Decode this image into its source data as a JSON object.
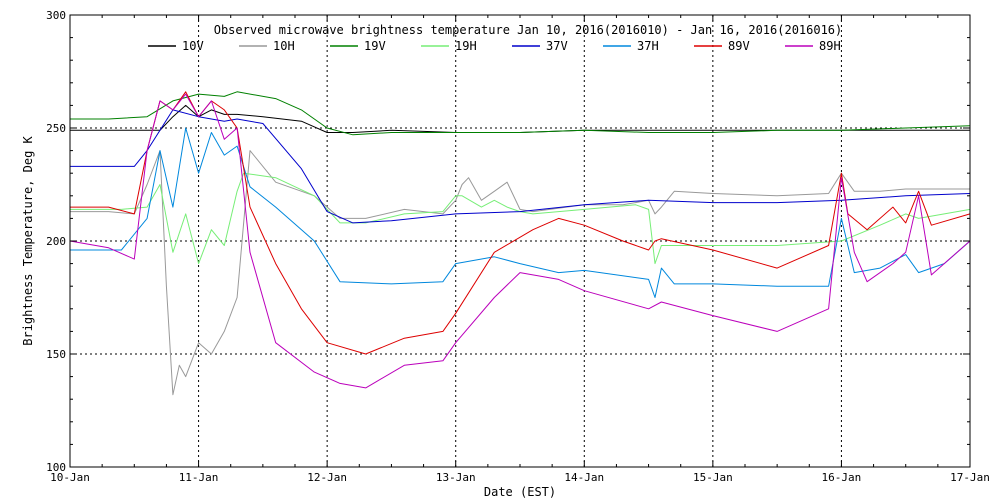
{
  "chart_data": {
    "type": "line",
    "title": "Observed microwave brightness temperature Jan 10, 2016(2016010) - Jan 16, 2016(2016016)",
    "xlabel": "Date (EST)",
    "ylabel": "Brightness Temperature, Deg K",
    "xlim": [
      0,
      7
    ],
    "ylim": [
      100,
      300
    ],
    "x_ticks": [
      {
        "x": 0,
        "label": "10-Jan"
      },
      {
        "x": 1,
        "label": "11-Jan"
      },
      {
        "x": 2,
        "label": "12-Jan"
      },
      {
        "x": 3,
        "label": "13-Jan"
      },
      {
        "x": 4,
        "label": "14-Jan"
      },
      {
        "x": 5,
        "label": "15-Jan"
      },
      {
        "x": 6,
        "label": "16-Jan"
      },
      {
        "x": 7,
        "label": "17-Jan"
      }
    ],
    "y_ticks": [
      {
        "y": 100,
        "label": "100"
      },
      {
        "y": 150,
        "label": "150"
      },
      {
        "y": 200,
        "label": "200"
      },
      {
        "y": 250,
        "label": "250"
      },
      {
        "y": 300,
        "label": "300"
      }
    ],
    "grid": "dotted",
    "legend_position": "top",
    "series": [
      {
        "name": "10V",
        "color": "#000000",
        "x": [
          0,
          0.5,
          0.7,
          0.8,
          0.9,
          1.0,
          1.1,
          1.2,
          1.3,
          1.5,
          1.8,
          2.0,
          2.2,
          2.5,
          3.0,
          3.5,
          4.0,
          4.5,
          5.0,
          5.5,
          6.0,
          6.5,
          7.0
        ],
        "y": [
          249,
          249,
          249,
          255,
          260,
          255,
          258,
          256,
          256,
          255,
          253,
          248,
          248,
          249,
          248,
          248,
          249,
          249,
          249,
          249,
          249,
          249,
          249
        ]
      },
      {
        "name": "10H",
        "color": "#999999",
        "x": [
          0,
          0.3,
          0.5,
          0.6,
          0.7,
          0.75,
          0.8,
          0.85,
          0.9,
          1.0,
          1.1,
          1.2,
          1.3,
          1.4,
          1.6,
          1.9,
          2.1,
          2.3,
          2.6,
          2.9,
          3.0,
          3.05,
          3.1,
          3.2,
          3.3,
          3.4,
          3.5,
          3.6,
          4.0,
          4.3,
          4.5,
          4.55,
          4.6,
          4.7,
          5.0,
          5.5,
          5.9,
          6.0,
          6.1,
          6.3,
          6.5,
          6.6,
          7.0
        ],
        "y": [
          213,
          213,
          212,
          225,
          240,
          180,
          132,
          145,
          140,
          155,
          150,
          160,
          175,
          240,
          226,
          220,
          210,
          210,
          214,
          212,
          218,
          225,
          228,
          218,
          222,
          226,
          214,
          213,
          216,
          216,
          218,
          212,
          215,
          222,
          221,
          220,
          221,
          230,
          222,
          222,
          223,
          223,
          223
        ]
      },
      {
        "name": "19V",
        "color": "#008000",
        "x": [
          0,
          0.3,
          0.6,
          0.8,
          1.0,
          1.2,
          1.3,
          1.6,
          1.8,
          2.0,
          2.2,
          2.5,
          3.0,
          3.5,
          4.0,
          4.5,
          5.0,
          5.5,
          6.0,
          6.5,
          7.0
        ],
        "y": [
          254,
          254,
          255,
          262,
          265,
          264,
          266,
          263,
          258,
          250,
          247,
          248,
          248,
          248,
          249,
          248,
          248,
          249,
          249,
          250,
          251
        ]
      },
      {
        "name": "19H",
        "color": "#77ee77",
        "x": [
          0,
          0.4,
          0.6,
          0.7,
          0.8,
          0.9,
          1.0,
          1.1,
          1.2,
          1.3,
          1.35,
          1.6,
          1.9,
          2.1,
          2.3,
          2.6,
          2.9,
          3.0,
          3.05,
          3.2,
          3.3,
          3.4,
          3.5,
          3.6,
          4.0,
          4.4,
          4.5,
          4.55,
          4.6,
          5.0,
          5.5,
          6.0,
          6.3,
          6.5,
          6.6,
          7.0
        ],
        "y": [
          214,
          214,
          215,
          225,
          195,
          212,
          190,
          205,
          198,
          222,
          230,
          228,
          220,
          208,
          208,
          212,
          213,
          220,
          220,
          215,
          218,
          215,
          213,
          212,
          214,
          216,
          214,
          190,
          198,
          198,
          198,
          200,
          207,
          212,
          210,
          214
        ]
      },
      {
        "name": "37V",
        "color": "#0000cc",
        "x": [
          0,
          0.5,
          0.6,
          0.8,
          1.0,
          1.2,
          1.3,
          1.5,
          1.8,
          2.0,
          2.2,
          2.5,
          3.0,
          3.5,
          4.0,
          4.5,
          5.0,
          5.5,
          6.0,
          6.5,
          7.0
        ],
        "y": [
          233,
          233,
          240,
          258,
          255,
          253,
          254,
          252,
          232,
          213,
          208,
          209,
          212,
          213,
          216,
          218,
          217,
          217,
          218,
          220,
          221
        ]
      },
      {
        "name": "37H",
        "color": "#0088dd",
        "x": [
          0,
          0.4,
          0.6,
          0.7,
          0.8,
          0.9,
          1.0,
          1.1,
          1.2,
          1.3,
          1.4,
          1.6,
          1.9,
          2.1,
          2.5,
          2.9,
          3.0,
          3.3,
          3.5,
          3.8,
          4.0,
          4.5,
          4.55,
          4.6,
          4.7,
          5.0,
          5.5,
          5.9,
          6.0,
          6.1,
          6.3,
          6.5,
          6.6,
          6.8,
          7.0
        ],
        "y": [
          196,
          196,
          210,
          240,
          215,
          250,
          230,
          248,
          238,
          242,
          224,
          215,
          200,
          182,
          181,
          182,
          190,
          193,
          190,
          186,
          187,
          183,
          175,
          188,
          181,
          181,
          180,
          180,
          210,
          186,
          188,
          194,
          186,
          190,
          200
        ]
      },
      {
        "name": "89V",
        "color": "#dd0000",
        "x": [
          0,
          0.3,
          0.5,
          0.6,
          0.7,
          0.8,
          0.9,
          1.0,
          1.1,
          1.2,
          1.3,
          1.4,
          1.6,
          1.8,
          2.0,
          2.3,
          2.6,
          2.9,
          3.0,
          3.3,
          3.6,
          3.8,
          4.0,
          4.3,
          4.5,
          4.55,
          4.6,
          5.0,
          5.5,
          5.9,
          6.0,
          6.05,
          6.2,
          6.4,
          6.5,
          6.6,
          6.7,
          7.0
        ],
        "y": [
          215,
          215,
          212,
          240,
          262,
          258,
          266,
          255,
          262,
          258,
          250,
          215,
          190,
          170,
          155,
          150,
          157,
          160,
          168,
          195,
          205,
          210,
          207,
          200,
          196,
          200,
          201,
          196,
          188,
          198,
          230,
          212,
          205,
          215,
          208,
          222,
          207,
          212
        ]
      },
      {
        "name": "89H",
        "color": "#bb00bb",
        "x": [
          0,
          0.3,
          0.5,
          0.6,
          0.7,
          0.8,
          0.9,
          1.0,
          1.1,
          1.2,
          1.3,
          1.4,
          1.6,
          1.9,
          2.1,
          2.3,
          2.6,
          2.9,
          3.0,
          3.3,
          3.5,
          3.8,
          4.0,
          4.5,
          4.6,
          5.0,
          5.5,
          5.9,
          6.0,
          6.1,
          6.2,
          6.4,
          6.5,
          6.6,
          6.7,
          7.0
        ],
        "y": [
          200,
          197,
          192,
          240,
          262,
          258,
          265,
          255,
          262,
          245,
          250,
          195,
          155,
          142,
          137,
          135,
          145,
          147,
          155,
          175,
          186,
          183,
          178,
          170,
          173,
          167,
          160,
          170,
          228,
          195,
          182,
          190,
          195,
          220,
          185,
          200
        ]
      }
    ]
  }
}
